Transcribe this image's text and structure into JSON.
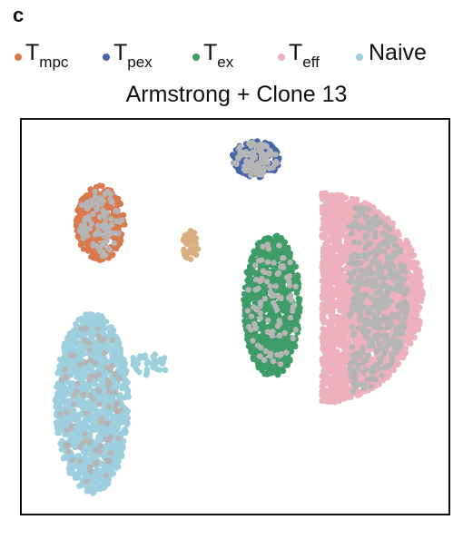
{
  "panel_label": "c",
  "legend": [
    {
      "id": "mpc",
      "main": "T",
      "sub": "mpc",
      "color": "#D87A4E"
    },
    {
      "id": "pex",
      "main": "T",
      "sub": "pex",
      "color": "#4566AA"
    },
    {
      "id": "ex",
      "main": "T",
      "sub": "ex",
      "color": "#3E9C66"
    },
    {
      "id": "eff",
      "main": "T",
      "sub": "eff",
      "color": "#EDB0BD"
    },
    {
      "id": "naive",
      "main": "Naive",
      "sub": "",
      "color": "#9DCFDF"
    }
  ],
  "chart_data": {
    "type": "scatter",
    "title": "Armstrong + Clone 13",
    "xlabel": "",
    "ylabel": "",
    "axes_visible": false,
    "grid": false,
    "legend_position": "top",
    "xlim": [
      0,
      100
    ],
    "ylim": [
      0,
      100
    ],
    "clusters": [
      {
        "name": "T_mpc",
        "color": "#D87A4E",
        "center": [
          17,
          75
        ],
        "spread": [
          6,
          10
        ],
        "shape": "ellipse"
      },
      {
        "name": "T_pex",
        "color": "#4566AA",
        "center": [
          55,
          92
        ],
        "spread": [
          6,
          5
        ],
        "shape": "ellipse"
      },
      {
        "name": "T_ex",
        "color": "#3E9C66",
        "center": [
          59,
          53
        ],
        "spread": [
          7,
          19
        ],
        "shape": "ellipse"
      },
      {
        "name": "T_eff",
        "color": "#EDB0BD",
        "center": [
          80,
          55
        ],
        "spread": [
          16,
          28
        ],
        "shape": "half-disk"
      },
      {
        "name": "Naive",
        "color": "#9DCFDF",
        "center": [
          15,
          27
        ],
        "spread": [
          9,
          24
        ],
        "shape": "ellipse"
      }
    ],
    "minor_cluster": {
      "name": "unlabeled",
      "color": "#D8AE7E",
      "center": [
        39,
        69
      ],
      "spread": [
        2,
        4
      ]
    },
    "background_cells_color": "#B5B5B5"
  }
}
